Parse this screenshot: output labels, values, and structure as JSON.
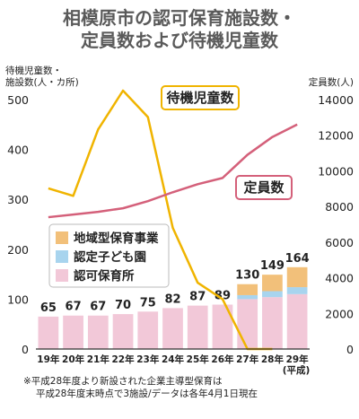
{
  "chart_data": {
    "type": "bar",
    "title_lines": [
      "相模原市の認可保育施設数・",
      "定員数および待機児童数"
    ],
    "y_left_label_lines": [
      "待機児童数・",
      "施設数(人・カ所)"
    ],
    "y_right_label": "定員数(人)",
    "ylim_left": [
      0,
      500
    ],
    "ylim_right": [
      0,
      14000
    ],
    "yticks_left": [
      0,
      100,
      200,
      300,
      400,
      500
    ],
    "yticks_right": [
      0,
      2000,
      4000,
      6000,
      8000,
      10000,
      12000,
      14000
    ],
    "categories": [
      "19年",
      "20年",
      "21年",
      "22年",
      "23年",
      "24年",
      "25年",
      "26年",
      "27年",
      "28年",
      "29年"
    ],
    "x_unit": "(平成)",
    "bar_totals": [
      65,
      67,
      67,
      70,
      75,
      82,
      87,
      89,
      130,
      149,
      164
    ],
    "bar_series": [
      {
        "name": "認可保育所",
        "color": "#f2c8d8",
        "values": [
          65,
          67,
          67,
          70,
          75,
          82,
          87,
          89,
          100,
          104,
          110
        ]
      },
      {
        "name": "認定子ども園",
        "color": "#a8d4ee",
        "values": [
          0,
          0,
          0,
          0,
          0,
          0,
          0,
          0,
          8,
          12,
          14
        ]
      },
      {
        "name": "地域型保育事業",
        "color": "#f2c07a",
        "values": [
          0,
          0,
          0,
          0,
          0,
          0,
          0,
          0,
          22,
          33,
          40
        ]
      }
    ],
    "line_series": [
      {
        "name": "待機児童数",
        "axis": "left",
        "color": "#f0b400",
        "values": [
          322,
          307,
          440,
          518,
          465,
          243,
          133,
          100,
          0,
          0,
          null
        ]
      },
      {
        "name": "定員数",
        "axis": "right",
        "color": "#d4607a",
        "values": [
          7400,
          7550,
          7700,
          7900,
          8300,
          8800,
          9250,
          9600,
          10900,
          11900,
          12600
        ]
      }
    ],
    "legend_order": [
      "地域型保育事業",
      "認定子ども園",
      "認可保育所"
    ],
    "footnote_lines": [
      "※平成28年度より新設された企業主導型保育は",
      "平成28年度末時点で3施設/データは各年4月1日現在"
    ]
  }
}
